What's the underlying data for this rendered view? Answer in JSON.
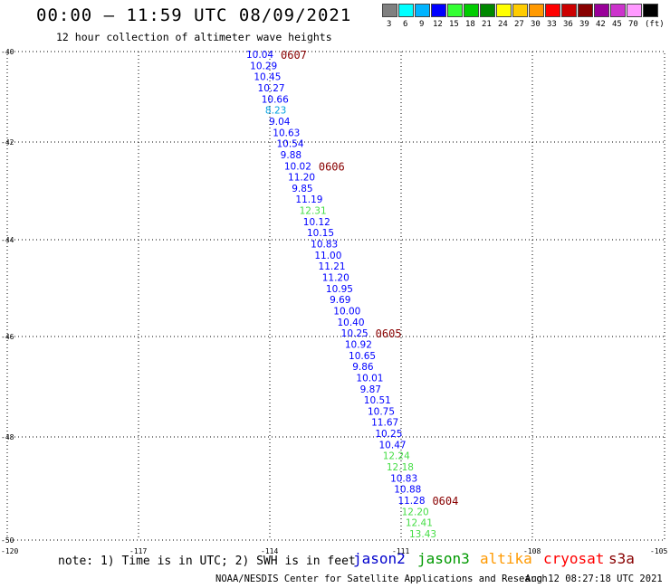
{
  "header": {
    "title": "00:00 — 11:59 UTC 08/09/2021",
    "subtitle": "12 hour collection of altimeter wave heights"
  },
  "legend": {
    "swatches": [
      {
        "color": "#808080",
        "label": "3"
      },
      {
        "color": "#00ffff",
        "label": "6"
      },
      {
        "color": "#00b4ff",
        "label": "9"
      },
      {
        "color": "#0000ff",
        "label": "12"
      },
      {
        "color": "#33ff33",
        "label": "15"
      },
      {
        "color": "#00cc00",
        "label": "18"
      },
      {
        "color": "#008800",
        "label": "21"
      },
      {
        "color": "#ffff00",
        "label": "24"
      },
      {
        "color": "#ffcc00",
        "label": "27"
      },
      {
        "color": "#ff9900",
        "label": "30"
      },
      {
        "color": "#ff0000",
        "label": "33"
      },
      {
        "color": "#cc0000",
        "label": "36"
      },
      {
        "color": "#880000",
        "label": "39"
      },
      {
        "color": "#990099",
        "label": "42"
      },
      {
        "color": "#cc33cc",
        "label": "45"
      },
      {
        "color": "#ff99ff",
        "label": "70"
      },
      {
        "color": "#000000",
        "label": ""
      }
    ],
    "unit": "(ft)"
  },
  "map": {
    "lat_labels": [
      "-40",
      "-42",
      "-44",
      "-46",
      "-48",
      "-50"
    ],
    "lon_labels": [
      "-120",
      "-117",
      "-114",
      "-111",
      "-108",
      "-105"
    ]
  },
  "obs": [
    {
      "v": "10.04",
      "c": "#0000ff"
    },
    {
      "v": "10.29",
      "c": "#0000ff"
    },
    {
      "v": "10.45",
      "c": "#0000ff"
    },
    {
      "v": "10.27",
      "c": "#0000ff"
    },
    {
      "v": "10.66",
      "c": "#0000ff"
    },
    {
      "v": "8.23",
      "c": "#00a0e0"
    },
    {
      "v": "9.04",
      "c": "#0000ff"
    },
    {
      "v": "10.63",
      "c": "#0000ff"
    },
    {
      "v": "10.54",
      "c": "#0000ff"
    },
    {
      "v": "9.88",
      "c": "#0000ff"
    },
    {
      "v": "10.02",
      "c": "#0000ff"
    },
    {
      "v": "11.20",
      "c": "#0000ff"
    },
    {
      "v": "9.85",
      "c": "#0000ff"
    },
    {
      "v": "11.19",
      "c": "#0000ff"
    },
    {
      "v": "12.31",
      "c": "#44dd44"
    },
    {
      "v": "10.12",
      "c": "#0000ff"
    },
    {
      "v": "10.15",
      "c": "#0000ff"
    },
    {
      "v": "10.83",
      "c": "#0000ff"
    },
    {
      "v": "11.00",
      "c": "#0000ff"
    },
    {
      "v": "11.21",
      "c": "#0000ff"
    },
    {
      "v": "11.20",
      "c": "#0000ff"
    },
    {
      "v": "10.95",
      "c": "#0000ff"
    },
    {
      "v": "9.69",
      "c": "#0000ff"
    },
    {
      "v": "10.00",
      "c": "#0000ff"
    },
    {
      "v": "10.40",
      "c": "#0000ff"
    },
    {
      "v": "10.25",
      "c": "#0000ff"
    },
    {
      "v": "10.92",
      "c": "#0000ff"
    },
    {
      "v": "10.65",
      "c": "#0000ff"
    },
    {
      "v": "9.86",
      "c": "#0000ff"
    },
    {
      "v": "10.01",
      "c": "#0000ff"
    },
    {
      "v": "9.87",
      "c": "#0000ff"
    },
    {
      "v": "10.51",
      "c": "#0000ff"
    },
    {
      "v": "10.75",
      "c": "#0000ff"
    },
    {
      "v": "11.67",
      "c": "#0000ff"
    },
    {
      "v": "10.25",
      "c": "#0000ff"
    },
    {
      "v": "10.47",
      "c": "#0000ff"
    },
    {
      "v": "12.24",
      "c": "#44dd44"
    },
    {
      "v": "12.18",
      "c": "#44dd44"
    },
    {
      "v": "10.83",
      "c": "#0000ff"
    },
    {
      "v": "10.88",
      "c": "#0000ff"
    },
    {
      "v": "11.28",
      "c": "#0000ff"
    },
    {
      "v": "12.20",
      "c": "#44dd44"
    },
    {
      "v": "12.41",
      "c": "#44dd44"
    },
    {
      "v": "13.43",
      "c": "#44dd44"
    }
  ],
  "times": [
    {
      "t": "0607",
      "after": 0
    },
    {
      "t": "0606",
      "after": 10
    },
    {
      "t": "0605",
      "after": 25
    },
    {
      "t": "0604",
      "after": 40
    }
  ],
  "footer": {
    "note": "note: 1) Time is in UTC; 2) SWH is in feet",
    "satellites": [
      {
        "name": "jason2",
        "color": "#0000cc"
      },
      {
        "name": "jason3",
        "color": "#009900"
      },
      {
        "name": "altika",
        "color": "#ff9900"
      },
      {
        "name": "cryosat",
        "color": "#ff0000"
      },
      {
        "name": "s3a",
        "color": "#880000"
      }
    ],
    "credit": "NOAA/NESDIS Center for Satellite Applications and Research",
    "stamp": "Aug 12 08:27:18 UTC 2021"
  }
}
